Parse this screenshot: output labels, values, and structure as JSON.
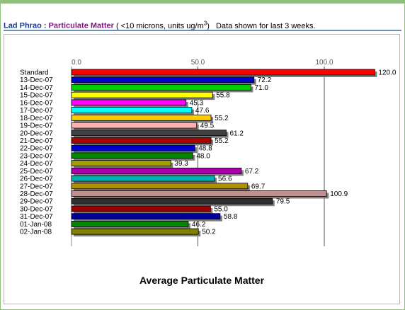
{
  "header": {
    "station": "Lad Phrao :",
    "parameter": "Particulate Matter",
    "units_pre": "( <10 microns, units ug/m",
    "units_sup": "3",
    "units_post": ")",
    "note": "Data shown for last 3 weeks."
  },
  "chart_data": {
    "type": "bar",
    "orientation": "horizontal",
    "title": "Average Particulate Matter",
    "xlim": [
      0,
      120
    ],
    "ticks": [
      {
        "value": 0,
        "label": "0.0"
      },
      {
        "value": 50,
        "label": "50.0"
      },
      {
        "value": 100,
        "label": "100.0"
      }
    ],
    "grid": true,
    "categories": [
      "Standard",
      "13-Dec-07",
      "14-Dec-07",
      "15-Dec-07",
      "16-Dec-07",
      "17-Dec-07",
      "18-Dec-07",
      "19-Dec-07",
      "20-Dec-07",
      "21-Dec-07",
      "22-Dec-07",
      "23-Dec-07",
      "24-Dec-07",
      "25-Dec-07",
      "26-Dec-07",
      "27-Dec-07",
      "28-Dec-07",
      "29-Dec-07",
      "30-Dec-07",
      "31-Dec-07",
      "01-Jan-08",
      "02-Jan-08"
    ],
    "values": [
      120.0,
      72.2,
      71.0,
      55.8,
      45.3,
      47.6,
      55.2,
      49.5,
      61.2,
      55.2,
      48.8,
      48.0,
      39.3,
      67.2,
      56.6,
      69.7,
      100.9,
      79.5,
      55.0,
      58.8,
      46.2,
      50.2
    ],
    "value_labels": [
      "120.0",
      "72.2",
      "71.0",
      "55.8",
      "45.3",
      "47.6",
      "55.2",
      "49.5",
      "61.2",
      "55.2",
      "48.8",
      "48.0",
      "39.3",
      "67.2",
      "56.6",
      "69.7",
      "100.9",
      "79.5",
      "55.0",
      "58.8",
      "46.2",
      "50.2"
    ],
    "colors": [
      "#ff0000",
      "#0000cc",
      "#00cc00",
      "#ffff00",
      "#ff00ff",
      "#00ffff",
      "#ffcc00",
      "#ffb0b0",
      "#404040",
      "#aa0000",
      "#0000cc",
      "#008800",
      "#a0a000",
      "#aa00aa",
      "#00b0b0",
      "#b09000",
      "#c09090",
      "#303030",
      "#990000",
      "#000099",
      "#008800",
      "#808000"
    ]
  }
}
